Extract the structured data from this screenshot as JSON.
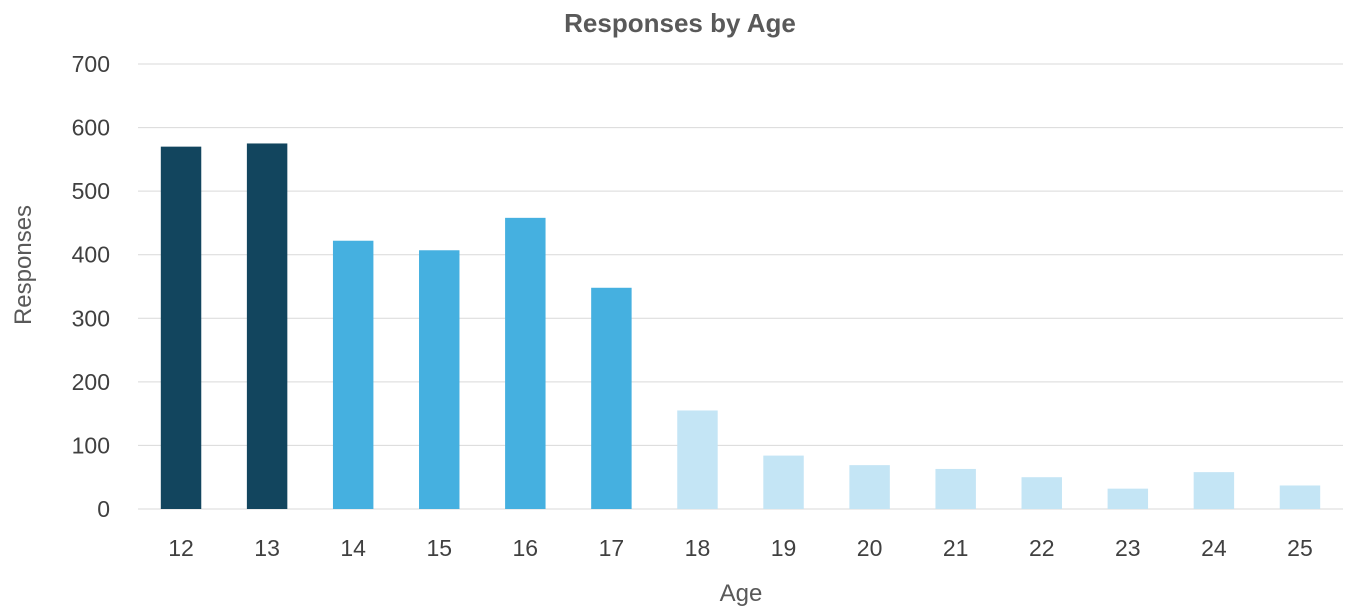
{
  "chart_data": {
    "type": "bar",
    "title": "Responses by Age",
    "xlabel": "Age",
    "ylabel": "Responses",
    "ylim": [
      0,
      700
    ],
    "yticks": [
      0,
      100,
      200,
      300,
      400,
      500,
      600,
      700
    ],
    "grid": true,
    "categories": [
      "12",
      "13",
      "14",
      "15",
      "16",
      "17",
      "18",
      "19",
      "20",
      "21",
      "22",
      "23",
      "24",
      "25"
    ],
    "values": [
      570,
      575,
      422,
      407,
      458,
      348,
      155,
      84,
      69,
      63,
      50,
      32,
      58,
      37
    ],
    "colors": [
      "#12455e",
      "#12455e",
      "#45b0e0",
      "#45b0e0",
      "#45b0e0",
      "#45b0e0",
      "#c4e5f5",
      "#c4e5f5",
      "#c4e5f5",
      "#c4e5f5",
      "#c4e5f5",
      "#c4e5f5",
      "#c4e5f5",
      "#c4e5f5"
    ]
  }
}
